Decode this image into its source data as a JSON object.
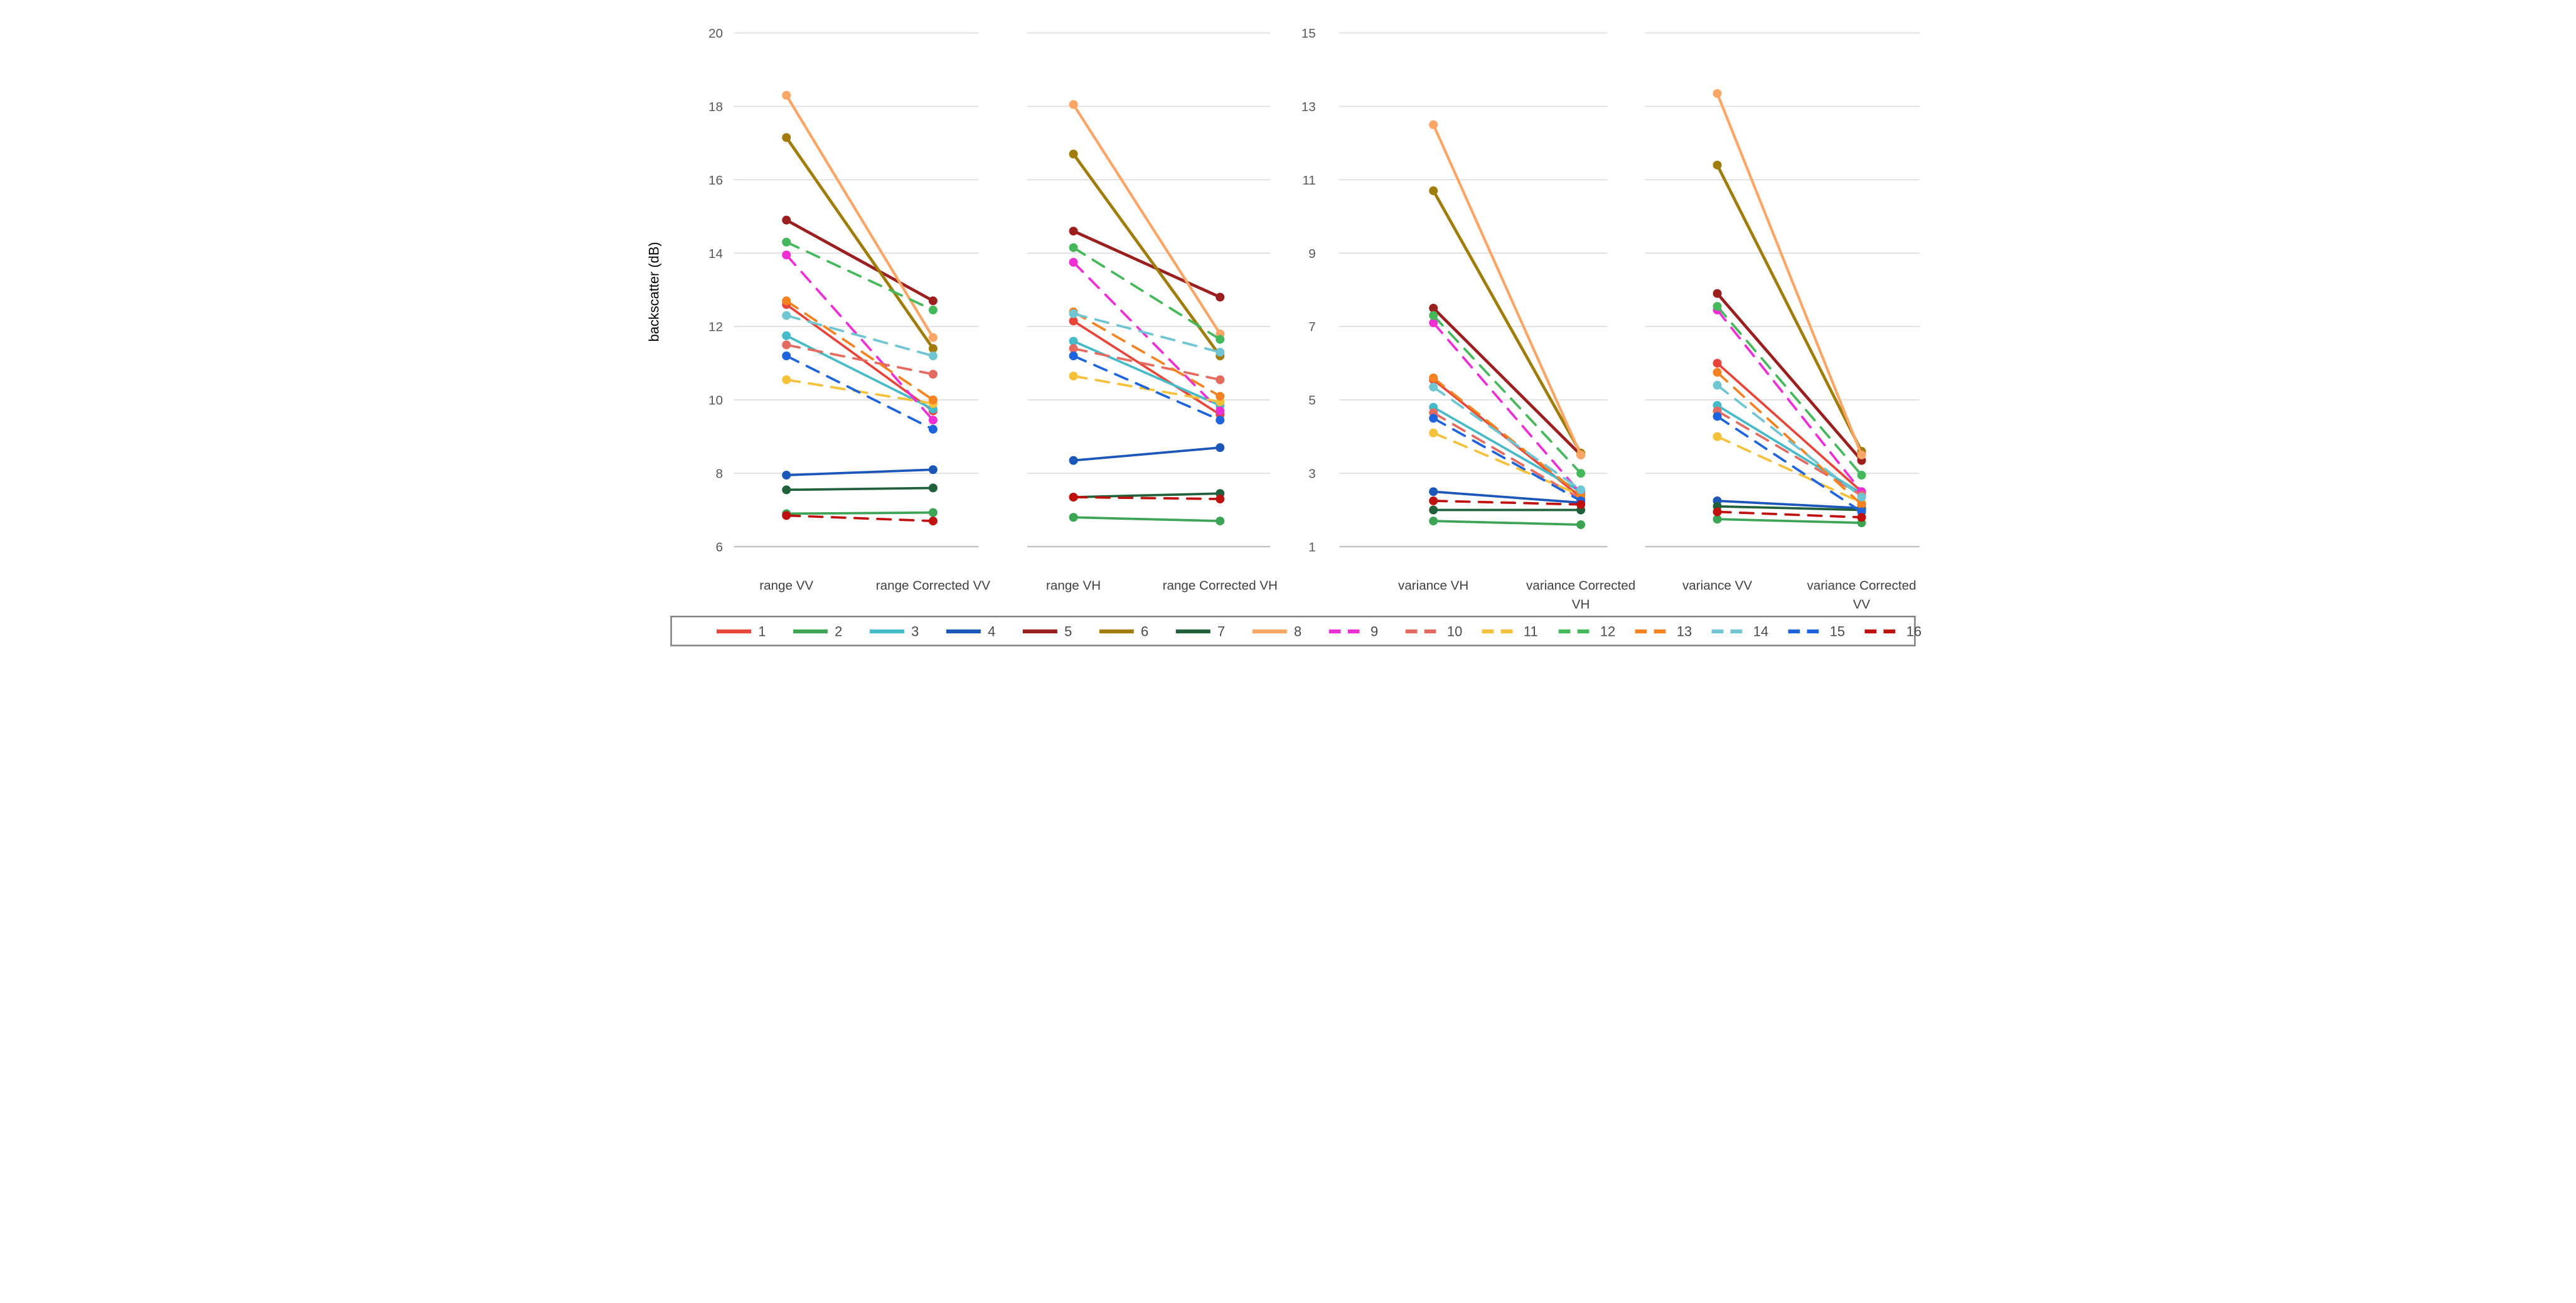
{
  "chart_data": {
    "type": "line",
    "subtype": "slope-graph-4-panels",
    "title": "",
    "ylabel": "backscatter  (dB)",
    "grid": true,
    "legend_position": "bottom",
    "colors": {
      "gridline": "#d9d9d9",
      "baseline": "#bfbfbf",
      "tick_text": "#595959",
      "category_text": "#404040",
      "legend_text": "#4a4a4a",
      "legend_border": "#808080"
    },
    "axes": {
      "db": {
        "min": 6,
        "max": 20,
        "ticks": [
          20,
          18,
          16,
          14,
          12,
          10,
          8,
          6
        ]
      },
      "var": {
        "min": 1,
        "max": 15,
        "ticks": [
          15,
          13,
          11,
          9,
          7,
          5,
          3,
          1
        ]
      }
    },
    "panels": [
      {
        "id": "range-vv",
        "axis": "db",
        "categories": [
          [
            "range VV"
          ],
          [
            "range Corrected VV"
          ]
        ]
      },
      {
        "id": "range-vh",
        "axis": "db",
        "categories": [
          [
            "range VH"
          ],
          [
            "range Corrected VH"
          ]
        ]
      },
      {
        "id": "variance-vh",
        "axis": "var",
        "categories": [
          [
            "variance VH"
          ],
          [
            "variance Corrected",
            "VH"
          ]
        ]
      },
      {
        "id": "variance-vv",
        "axis": "var",
        "categories": [
          [
            "variance VV"
          ],
          [
            "variance Corrected",
            "VV"
          ]
        ]
      }
    ],
    "series": [
      {
        "name": "1",
        "color": "#e8453a",
        "dashed": false,
        "values": [
          [
            12.6,
            9.7
          ],
          [
            12.15,
            9.6
          ],
          [
            5.55,
            2.35
          ],
          [
            6.0,
            2.5
          ]
        ]
      },
      {
        "name": "2",
        "color": "#3ca454",
        "dashed": false,
        "values": [
          [
            6.9,
            6.93
          ],
          [
            6.8,
            6.7
          ],
          [
            1.7,
            1.6
          ],
          [
            1.75,
            1.65
          ]
        ]
      },
      {
        "name": "3",
        "color": "#45bac9",
        "dashed": false,
        "values": [
          [
            11.75,
            9.75
          ],
          [
            11.6,
            9.85
          ],
          [
            4.8,
            2.5
          ],
          [
            4.85,
            2.45
          ]
        ]
      },
      {
        "name": "4",
        "color": "#1c56b8",
        "dashed": false,
        "values": [
          [
            7.95,
            8.1
          ],
          [
            8.35,
            8.7
          ],
          [
            2.5,
            2.2
          ],
          [
            2.25,
            2.05
          ]
        ]
      },
      {
        "name": "5",
        "color": "#9c1f1f",
        "dashed": false,
        "values": [
          [
            14.9,
            12.7
          ],
          [
            14.6,
            12.8
          ],
          [
            7.5,
            3.5
          ],
          [
            7.9,
            3.35
          ]
        ]
      },
      {
        "name": "6",
        "color": "#a07d0a",
        "dashed": false,
        "values": [
          [
            17.15,
            11.4
          ],
          [
            16.7,
            11.2
          ],
          [
            10.7,
            3.55
          ],
          [
            11.4,
            3.6
          ]
        ]
      },
      {
        "name": "7",
        "color": "#20613b",
        "dashed": false,
        "values": [
          [
            7.55,
            7.6
          ],
          [
            7.35,
            7.45
          ],
          [
            2.0,
            2.0
          ],
          [
            2.1,
            2.0
          ]
        ]
      },
      {
        "name": "8",
        "color": "#fba567",
        "dashed": false,
        "values": [
          [
            18.3,
            11.7
          ],
          [
            18.05,
            11.8
          ],
          [
            12.5,
            3.5
          ],
          [
            13.35,
            3.5
          ]
        ]
      },
      {
        "name": "9",
        "color": "#ee2fd4",
        "dashed": true,
        "values": [
          [
            13.95,
            9.45
          ],
          [
            13.75,
            9.7
          ],
          [
            7.1,
            2.45
          ],
          [
            7.45,
            2.5
          ]
        ]
      },
      {
        "name": "10",
        "color": "#e56a60",
        "dashed": true,
        "values": [
          [
            11.5,
            10.7
          ],
          [
            11.4,
            10.55
          ],
          [
            4.65,
            2.3
          ],
          [
            4.7,
            2.4
          ]
        ]
      },
      {
        "name": "11",
        "color": "#f6c13a",
        "dashed": true,
        "values": [
          [
            10.55,
            9.9
          ],
          [
            10.65,
            9.95
          ],
          [
            4.1,
            2.4
          ],
          [
            4.0,
            2.2
          ]
        ]
      },
      {
        "name": "12",
        "color": "#45b85b",
        "dashed": true,
        "values": [
          [
            14.3,
            12.45
          ],
          [
            14.15,
            11.65
          ],
          [
            7.3,
            3.0
          ],
          [
            7.55,
            2.95
          ]
        ]
      },
      {
        "name": "13",
        "color": "#f58220",
        "dashed": true,
        "values": [
          [
            12.7,
            10.0
          ],
          [
            12.4,
            10.1
          ],
          [
            5.6,
            2.4
          ],
          [
            5.75,
            2.15
          ]
        ]
      },
      {
        "name": "14",
        "color": "#6fc6d2",
        "dashed": true,
        "values": [
          [
            12.3,
            11.2
          ],
          [
            12.35,
            11.3
          ],
          [
            5.35,
            2.55
          ],
          [
            5.4,
            2.35
          ]
        ]
      },
      {
        "name": "15",
        "color": "#1e64dc",
        "dashed": true,
        "values": [
          [
            11.2,
            9.2
          ],
          [
            11.2,
            9.45
          ],
          [
            4.5,
            2.25
          ],
          [
            4.55,
            1.95
          ]
        ]
      },
      {
        "name": "16",
        "color": "#bf1210",
        "dashed": true,
        "values": [
          [
            6.85,
            6.7
          ],
          [
            7.35,
            7.3
          ],
          [
            2.25,
            2.15
          ],
          [
            1.95,
            1.8
          ]
        ]
      }
    ]
  }
}
